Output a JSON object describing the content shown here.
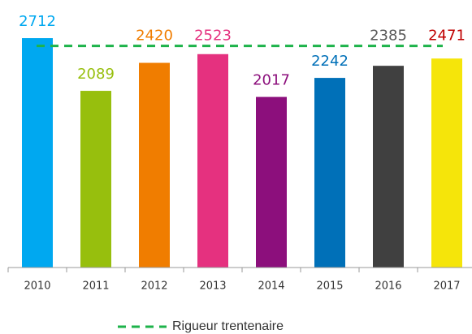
{
  "chart_data": {
    "type": "bar",
    "categories": [
      "2010",
      "2011",
      "2012",
      "2013",
      "2014",
      "2015",
      "2016",
      "2017"
    ],
    "values": [
      2712,
      2089,
      2420,
      2523,
      2017,
      2242,
      2385,
      2471
    ],
    "colors": [
      "#00a8f0",
      "#97bf0d",
      "#f07d00",
      "#e5317f",
      "#8c0f7c",
      "#0070b8",
      "#404040",
      "#f5e50a"
    ],
    "label_colors": [
      "#00a8f0",
      "#97bf0d",
      "#f07d00",
      "#e5317f",
      "#8c0f7c",
      "#0070b8",
      "#595959",
      "#c00000"
    ],
    "ylim": [
      0,
      3000
    ],
    "reference": {
      "name": "Rigueur trentenaire",
      "value": 2620,
      "color": "#1db34a"
    },
    "legend": "bottom"
  }
}
